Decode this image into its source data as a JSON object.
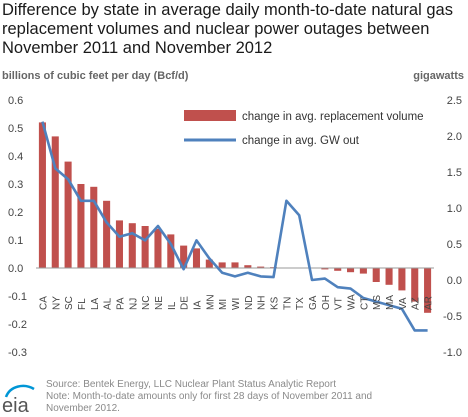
{
  "title": "Difference by state in average daily month-to-date natural gas replacement volumes and nuclear power outages between November 2011 and November 2012",
  "left_axis_unit": "billions of cubic feet per day (Bcf/d)",
  "right_axis_unit": "gigawatts",
  "source_line": "Source: Bentek Energy, LLC Nuclear Plant Status Analytic Report",
  "note_line1": "Note: Month-to-date amounts only for first 28 days of November 2011 and",
  "note_line2": "November 2012.",
  "logo_text": "eia",
  "chart_data": {
    "type": "bar",
    "categories": [
      "CA",
      "NY",
      "SC",
      "FL",
      "LA",
      "AL",
      "PA",
      "NJ",
      "NC",
      "NE",
      "IL",
      "DE",
      "IA",
      "MN",
      "MI",
      "WI",
      "ND",
      "NH",
      "KS",
      "TN",
      "TX",
      "GA",
      "OH",
      "VT",
      "WA",
      "CT",
      "MS",
      "MA",
      "VA",
      "AZ",
      "AR"
    ],
    "series": [
      {
        "name": "change in avg. replacement volume",
        "axis": "left",
        "color": "#c0504d",
        "values": [
          0.52,
          0.47,
          0.38,
          0.3,
          0.29,
          0.24,
          0.17,
          0.16,
          0.15,
          0.14,
          0.12,
          0.08,
          0.07,
          0.03,
          0.02,
          0.02,
          0.01,
          0.005,
          0.003,
          0.0,
          0.0,
          0.0,
          -0.005,
          -0.01,
          -0.015,
          -0.02,
          -0.05,
          -0.06,
          -0.08,
          -0.12,
          -0.16
        ]
      },
      {
        "name": "change in avg. GW out",
        "axis": "right",
        "color": "#4f81bd",
        "type": "line",
        "values": [
          2.2,
          1.55,
          1.4,
          1.1,
          1.1,
          0.8,
          0.6,
          0.65,
          0.55,
          0.75,
          0.5,
          0.15,
          0.55,
          0.3,
          0.1,
          0.05,
          0.1,
          0.05,
          0.04,
          1.1,
          0.9,
          0.0,
          0.02,
          -0.1,
          -0.12,
          -0.25,
          -0.3,
          -0.35,
          -0.4,
          -0.7,
          -0.7
        ]
      }
    ],
    "y_left": {
      "min": -0.3,
      "max": 0.6,
      "ticks": [
        "0.6",
        "0.5",
        "0.4",
        "0.3",
        "0.2",
        "0.1",
        "0.0",
        "-0.1",
        "-0.2",
        "-0.3"
      ]
    },
    "y_right": {
      "min": -1.0,
      "max": 2.5,
      "ticks": [
        "2.5",
        "2.0",
        "1.5",
        "1.0",
        "0.5",
        "0.0",
        "-0.5",
        "-1.0"
      ]
    },
    "grid": false,
    "legend_position": "top-right"
  }
}
